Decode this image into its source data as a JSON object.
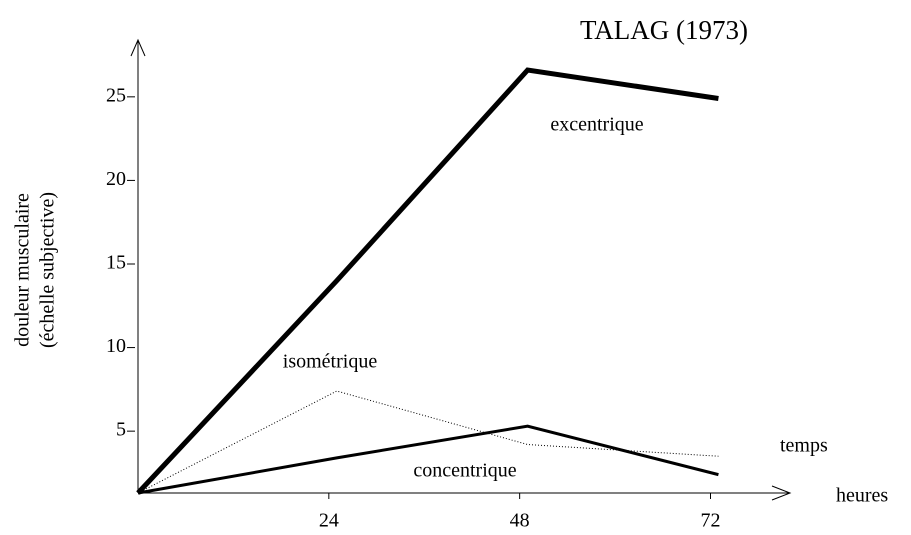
{
  "chart_data": {
    "type": "line",
    "title": "TALAG (1973)",
    "ylabel": [
      "douleur musculaire",
      "(échelle subjective)"
    ],
    "xlabel": [
      "temps",
      "heures"
    ],
    "x": [
      0,
      25,
      49,
      73
    ],
    "series": [
      {
        "name": "excentrique",
        "color": "#000000",
        "style": "solid",
        "width": 5,
        "values": [
          1.3,
          14,
          26.6,
          24.9
        ]
      },
      {
        "name": "isométrique",
        "color": "#000000",
        "style": "dotted",
        "width": 1,
        "values": [
          1.3,
          7.4,
          4.2,
          3.5
        ]
      },
      {
        "name": "concentrique",
        "color": "#000000",
        "style": "solid",
        "width": 3,
        "values": [
          1.3,
          3.4,
          5.3,
          2.4
        ]
      }
    ],
    "xlim": [
      0,
      82
    ],
    "ylim": [
      1.3,
      28.4
    ],
    "xticks": [
      24,
      48,
      72
    ],
    "yticks": [
      5,
      10,
      15,
      20,
      25
    ],
    "grid": false
  }
}
